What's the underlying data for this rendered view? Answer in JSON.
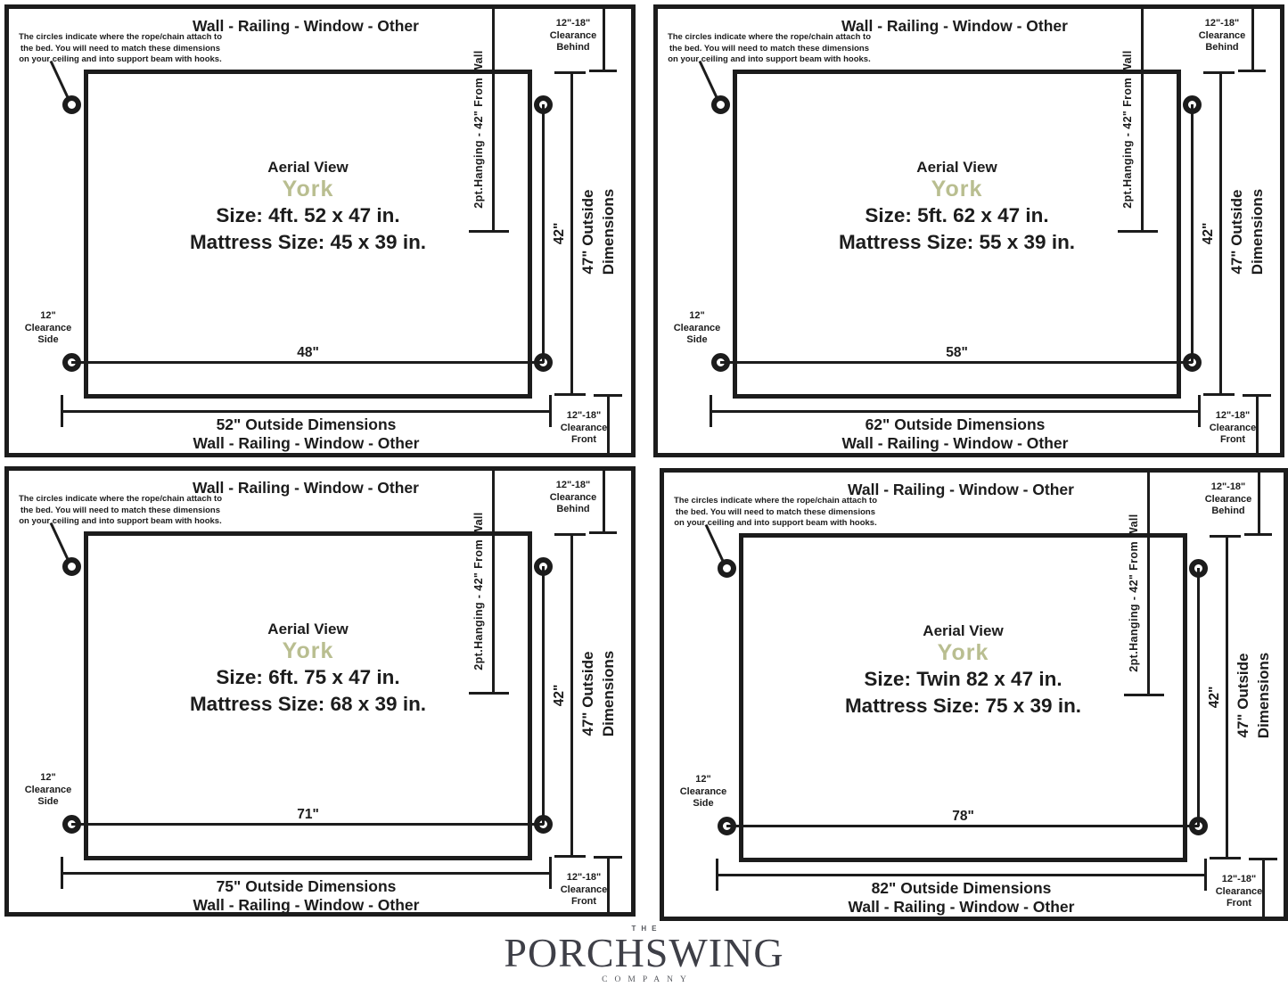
{
  "shared": {
    "boundary_label": "Wall - Railing - Window - Other",
    "note_lines": [
      "The circles indicate where the rope/chain attach to",
      "the bed. You will need to match these dimensions",
      "on your ceiling and into support beam with hooks."
    ],
    "aerial_label": "Aerial View",
    "model_name": "York",
    "hanging_label": "2pt.Hanging - 42\" From Wall",
    "vertical_42": "42\"",
    "outside_depth_line1": "47\" Outside",
    "outside_depth_line2": "Dimensions",
    "clearance_behind": [
      "12\"-18\"",
      "Clearance",
      "Behind"
    ],
    "clearance_side": [
      "12\"",
      "Clearance",
      "Side"
    ],
    "clearance_front": [
      "12\"-18\"",
      "Clearance",
      "Front"
    ]
  },
  "panels": [
    {
      "size": "Size: 4ft. 52 x 47 in.",
      "mattress": "Mattress Size: 45 x 39 in.",
      "inner_width": "48\"",
      "outside_width": "52\" Outside Dimensions"
    },
    {
      "size": "Size: 5ft. 62 x 47 in.",
      "mattress": "Mattress Size: 55 x 39 in.",
      "inner_width": "58\"",
      "outside_width": "62\" Outside Dimensions"
    },
    {
      "size": "Size: 6ft. 75 x 47 in.",
      "mattress": "Mattress Size: 68 x 39 in.",
      "inner_width": "71\"",
      "outside_width": "75\" Outside Dimensions"
    },
    {
      "size": "Size: Twin 82 x 47 in.",
      "mattress": "Mattress Size: 75 x 39 in.",
      "inner_width": "78\"",
      "outside_width": "82\" Outside Dimensions"
    }
  ],
  "logo": {
    "the": "THE",
    "name": "PORCHSWING",
    "company": "COMPANY"
  },
  "colors": {
    "ink": "#1c1c1c",
    "model_accent": "#b9be90",
    "logo_dark": "#3e3f47",
    "logo_muted": "#56585e"
  }
}
